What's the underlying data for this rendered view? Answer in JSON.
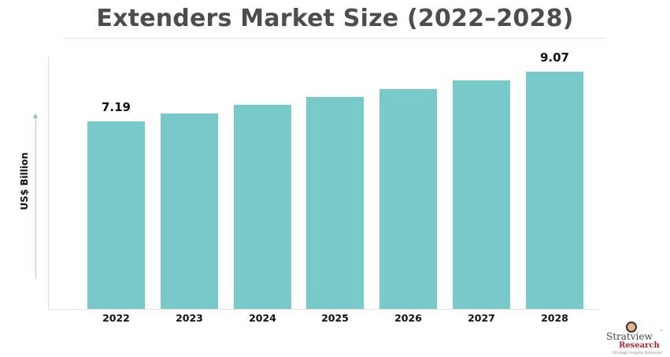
{
  "chart_data": {
    "type": "bar",
    "title": "Extenders Market Size (2022-2028)",
    "xlabel": "",
    "ylabel": "US$ Billion",
    "categories": [
      "2022",
      "2023",
      "2024",
      "2025",
      "2026",
      "2027",
      "2028"
    ],
    "values": [
      7.19,
      7.49,
      7.82,
      8.12,
      8.42,
      8.75,
      9.07
    ],
    "data_labels": {
      "2022": "7.19",
      "2028": "9.07"
    },
    "ylim": [
      0,
      9.6
    ],
    "grid": false,
    "legend": null,
    "bar_color": "#77cac7"
  },
  "labels": {
    "title": "Extenders Market Size (2022–2028)",
    "y_axis": "US$ Billion",
    "first_value": "7.19",
    "last_value": "9.07",
    "categories": [
      "2022",
      "2023",
      "2024",
      "2025",
      "2026",
      "2027",
      "2028"
    ]
  },
  "logo": {
    "name": "Stratview",
    "tm": "™",
    "sub": "Research",
    "tagline": "Strategic Insights Delivered"
  }
}
